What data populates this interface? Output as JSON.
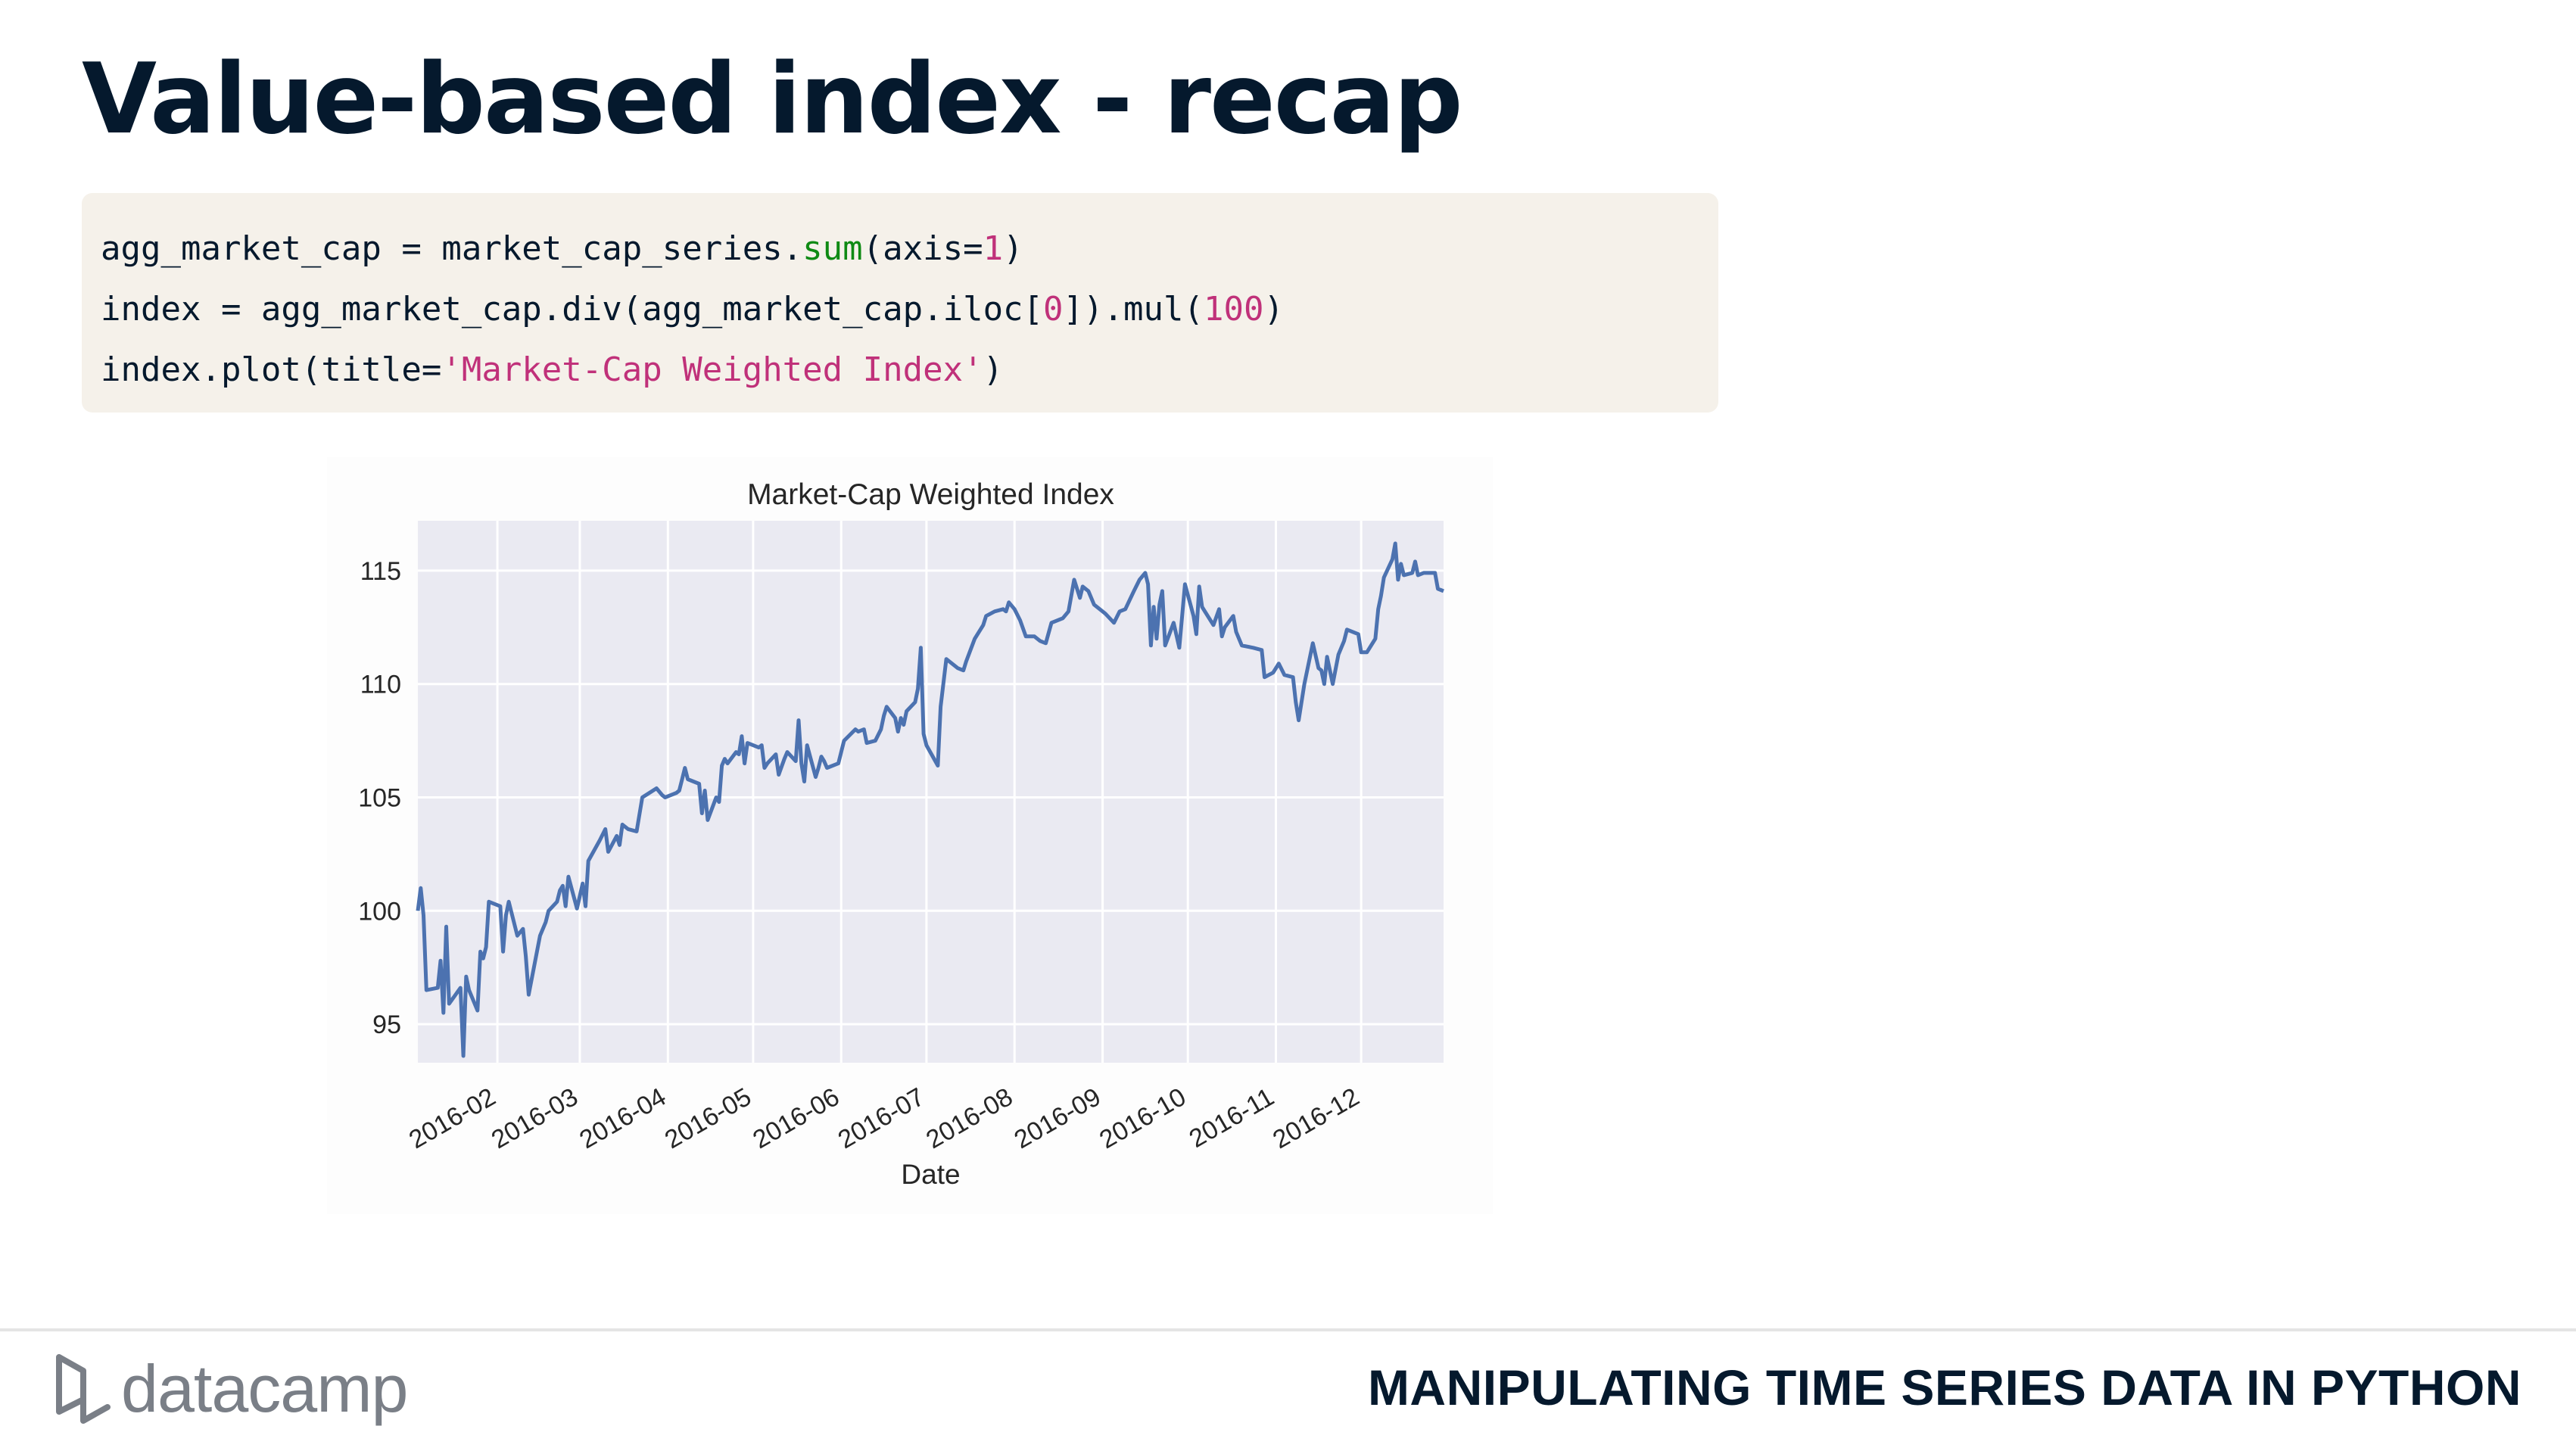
{
  "slide": {
    "title": "Value-based index - recap",
    "course": "MANIPULATING TIME SERIES DATA IN PYTHON",
    "brand": "datacamp"
  },
  "code": {
    "line1_a": "agg_market_cap = market_cap_series.",
    "line1_fn": "sum",
    "line1_b": "(axis=",
    "line1_num": "1",
    "line1_c": ")",
    "line2_a": "index = agg_market_cap.div(agg_market_cap.iloc[",
    "line2_num0": "0",
    "line2_b": "]).mul(",
    "line2_num100": "100",
    "line2_c": ")",
    "line3_a": "index.plot(title=",
    "line3_str": "'Market-Cap Weighted Index'",
    "line3_b": ")"
  },
  "chart_data": {
    "type": "line",
    "title": "Market-Cap Weighted Index",
    "xlabel": "Date",
    "ylabel": "",
    "x_range": [
      "2016-01-04",
      "2016-12-30"
    ],
    "ylim": [
      93.3,
      117.2
    ],
    "y_ticks": [
      95,
      100,
      105,
      110,
      115
    ],
    "x_ticks": [
      "2016-02-01",
      "2016-03-01",
      "2016-04-01",
      "2016-05-01",
      "2016-06-01",
      "2016-07-01",
      "2016-08-01",
      "2016-09-01",
      "2016-10-01",
      "2016-11-01",
      "2016-12-01"
    ],
    "x_tick_labels": [
      "2016-02",
      "2016-03",
      "2016-04",
      "2016-05",
      "2016-06",
      "2016-07",
      "2016-08",
      "2016-09",
      "2016-10",
      "2016-11",
      "2016-12"
    ],
    "grid": true,
    "line_color": "#4c72b0",
    "background_color": "#eaeaf2",
    "series": [
      {
        "points": [
          [
            "2016-01-04",
            100.0
          ],
          [
            "2016-01-05",
            101.0
          ],
          [
            "2016-01-06",
            99.8
          ],
          [
            "2016-01-07",
            96.5
          ],
          [
            "2016-01-11",
            96.6
          ],
          [
            "2016-01-12",
            97.8
          ],
          [
            "2016-01-13",
            95.5
          ],
          [
            "2016-01-14",
            99.3
          ],
          [
            "2016-01-15",
            95.9
          ],
          [
            "2016-01-19",
            96.6
          ],
          [
            "2016-01-20",
            93.6
          ],
          [
            "2016-01-21",
            97.1
          ],
          [
            "2016-01-22",
            96.5
          ],
          [
            "2016-01-25",
            95.6
          ],
          [
            "2016-01-26",
            98.2
          ],
          [
            "2016-01-27",
            97.9
          ],
          [
            "2016-01-28",
            98.4
          ],
          [
            "2016-01-29",
            100.4
          ],
          [
            "2016-02-02",
            100.2
          ],
          [
            "2016-02-03",
            98.2
          ],
          [
            "2016-02-04",
            99.8
          ],
          [
            "2016-02-05",
            100.4
          ],
          [
            "2016-02-08",
            98.9
          ],
          [
            "2016-02-10",
            99.2
          ],
          [
            "2016-02-11",
            98.0
          ],
          [
            "2016-02-12",
            96.3
          ],
          [
            "2016-02-16",
            98.9
          ],
          [
            "2016-02-18",
            99.5
          ],
          [
            "2016-02-19",
            100.0
          ],
          [
            "2016-02-22",
            100.4
          ],
          [
            "2016-02-23",
            100.9
          ],
          [
            "2016-02-24",
            101.1
          ],
          [
            "2016-02-25",
            100.2
          ],
          [
            "2016-02-26",
            101.5
          ],
          [
            "2016-02-29",
            100.1
          ],
          [
            "2016-03-02",
            101.2
          ],
          [
            "2016-03-03",
            100.2
          ],
          [
            "2016-03-04",
            102.2
          ],
          [
            "2016-03-08",
            103.1
          ],
          [
            "2016-03-10",
            103.6
          ],
          [
            "2016-03-11",
            102.6
          ],
          [
            "2016-03-14",
            103.3
          ],
          [
            "2016-03-15",
            102.9
          ],
          [
            "2016-03-16",
            103.8
          ],
          [
            "2016-03-18",
            103.6
          ],
          [
            "2016-03-21",
            103.5
          ],
          [
            "2016-03-23",
            105.0
          ],
          [
            "2016-03-28",
            105.4
          ],
          [
            "2016-03-30",
            105.1
          ],
          [
            "2016-03-31",
            105.0
          ],
          [
            "2016-04-04",
            105.2
          ],
          [
            "2016-04-05",
            105.3
          ],
          [
            "2016-04-06",
            105.8
          ],
          [
            "2016-04-07",
            106.3
          ],
          [
            "2016-04-08",
            105.8
          ],
          [
            "2016-04-12",
            105.6
          ],
          [
            "2016-04-13",
            104.3
          ],
          [
            "2016-04-14",
            105.3
          ],
          [
            "2016-04-15",
            104.0
          ],
          [
            "2016-04-18",
            105.0
          ],
          [
            "2016-04-19",
            104.8
          ],
          [
            "2016-04-20",
            106.4
          ],
          [
            "2016-04-21",
            106.7
          ],
          [
            "2016-04-22",
            106.5
          ],
          [
            "2016-04-25",
            107.0
          ],
          [
            "2016-04-26",
            106.9
          ],
          [
            "2016-04-27",
            107.7
          ],
          [
            "2016-04-28",
            106.5
          ],
          [
            "2016-04-29",
            107.4
          ],
          [
            "2016-05-03",
            107.2
          ],
          [
            "2016-05-04",
            107.3
          ],
          [
            "2016-05-05",
            106.3
          ],
          [
            "2016-05-06",
            106.5
          ],
          [
            "2016-05-09",
            106.9
          ],
          [
            "2016-05-10",
            106.0
          ],
          [
            "2016-05-12",
            106.7
          ],
          [
            "2016-05-13",
            107.0
          ],
          [
            "2016-05-16",
            106.6
          ],
          [
            "2016-05-17",
            108.4
          ],
          [
            "2016-05-18",
            106.5
          ],
          [
            "2016-05-19",
            105.7
          ],
          [
            "2016-05-20",
            107.3
          ],
          [
            "2016-05-23",
            105.9
          ],
          [
            "2016-05-24",
            106.3
          ],
          [
            "2016-05-25",
            106.8
          ],
          [
            "2016-05-26",
            106.6
          ],
          [
            "2016-05-27",
            106.3
          ],
          [
            "2016-05-31",
            106.5
          ],
          [
            "2016-06-02",
            107.5
          ],
          [
            "2016-06-06",
            108.0
          ],
          [
            "2016-06-07",
            107.9
          ],
          [
            "2016-06-09",
            108.0
          ],
          [
            "2016-06-10",
            107.4
          ],
          [
            "2016-06-13",
            107.5
          ],
          [
            "2016-06-15",
            108.0
          ],
          [
            "2016-06-16",
            108.6
          ],
          [
            "2016-06-17",
            109.0
          ],
          [
            "2016-06-20",
            108.5
          ],
          [
            "2016-06-21",
            107.9
          ],
          [
            "2016-06-22",
            108.5
          ],
          [
            "2016-06-23",
            108.2
          ],
          [
            "2016-06-24",
            108.8
          ],
          [
            "2016-06-27",
            109.2
          ],
          [
            "2016-06-28",
            109.8
          ],
          [
            "2016-06-29",
            111.6
          ],
          [
            "2016-06-30",
            107.8
          ],
          [
            "2016-07-01",
            107.3
          ],
          [
            "2016-07-05",
            106.4
          ],
          [
            "2016-07-06",
            109.0
          ],
          [
            "2016-07-08",
            111.1
          ],
          [
            "2016-07-12",
            110.7
          ],
          [
            "2016-07-14",
            110.6
          ],
          [
            "2016-07-15",
            111.0
          ],
          [
            "2016-07-18",
            112.0
          ],
          [
            "2016-07-21",
            112.6
          ],
          [
            "2016-07-22",
            113.0
          ],
          [
            "2016-07-25",
            113.2
          ],
          [
            "2016-07-28",
            113.3
          ],
          [
            "2016-07-29",
            113.2
          ],
          [
            "2016-07-30",
            113.6
          ],
          [
            "2016-08-01",
            113.3
          ],
          [
            "2016-08-03",
            112.8
          ],
          [
            "2016-08-05",
            112.1
          ],
          [
            "2016-08-08",
            112.1
          ],
          [
            "2016-08-10",
            111.9
          ],
          [
            "2016-08-12",
            111.8
          ],
          [
            "2016-08-14",
            112.7
          ],
          [
            "2016-08-16",
            112.8
          ],
          [
            "2016-08-18",
            112.9
          ],
          [
            "2016-08-20",
            113.2
          ],
          [
            "2016-08-22",
            114.6
          ],
          [
            "2016-08-24",
            113.8
          ],
          [
            "2016-08-25",
            114.3
          ],
          [
            "2016-08-27",
            114.1
          ],
          [
            "2016-08-29",
            113.5
          ],
          [
            "2016-09-01",
            113.2
          ],
          [
            "2016-09-02",
            113.1
          ],
          [
            "2016-09-05",
            112.7
          ],
          [
            "2016-09-07",
            113.2
          ],
          [
            "2016-09-09",
            113.3
          ],
          [
            "2016-09-12",
            114.1
          ],
          [
            "2016-09-14",
            114.6
          ],
          [
            "2016-09-16",
            114.9
          ],
          [
            "2016-09-17",
            114.4
          ],
          [
            "2016-09-18",
            111.7
          ],
          [
            "2016-09-19",
            113.4
          ],
          [
            "2016-09-20",
            112.0
          ],
          [
            "2016-09-21",
            113.5
          ],
          [
            "2016-09-22",
            114.1
          ],
          [
            "2016-09-23",
            111.7
          ],
          [
            "2016-09-26",
            112.7
          ],
          [
            "2016-09-28",
            111.6
          ],
          [
            "2016-09-30",
            114.4
          ],
          [
            "2016-10-03",
            113.0
          ],
          [
            "2016-10-04",
            112.2
          ],
          [
            "2016-10-05",
            114.3
          ],
          [
            "2016-10-06",
            113.4
          ],
          [
            "2016-10-07",
            113.2
          ],
          [
            "2016-10-10",
            112.6
          ],
          [
            "2016-10-12",
            113.3
          ],
          [
            "2016-10-13",
            112.1
          ],
          [
            "2016-10-14",
            112.5
          ],
          [
            "2016-10-17",
            113.0
          ],
          [
            "2016-10-18",
            112.3
          ],
          [
            "2016-10-20",
            111.7
          ],
          [
            "2016-10-24",
            111.6
          ],
          [
            "2016-10-27",
            111.5
          ],
          [
            "2016-10-28",
            110.3
          ],
          [
            "2016-10-31",
            110.5
          ],
          [
            "2016-11-02",
            110.9
          ],
          [
            "2016-11-04",
            110.4
          ],
          [
            "2016-11-07",
            110.3
          ],
          [
            "2016-11-08",
            109.2
          ],
          [
            "2016-11-09",
            108.4
          ],
          [
            "2016-11-11",
            110.0
          ],
          [
            "2016-11-14",
            111.8
          ],
          [
            "2016-11-16",
            110.7
          ],
          [
            "2016-11-17",
            110.6
          ],
          [
            "2016-11-18",
            110.0
          ],
          [
            "2016-11-19",
            111.2
          ],
          [
            "2016-11-21",
            110.0
          ],
          [
            "2016-11-23",
            111.3
          ],
          [
            "2016-11-25",
            111.9
          ],
          [
            "2016-11-26",
            112.4
          ],
          [
            "2016-11-28",
            112.3
          ],
          [
            "2016-11-30",
            112.2
          ],
          [
            "2016-12-01",
            111.4
          ],
          [
            "2016-12-03",
            111.4
          ],
          [
            "2016-12-06",
            112.0
          ],
          [
            "2016-12-07",
            113.3
          ],
          [
            "2016-12-08",
            113.9
          ],
          [
            "2016-12-09",
            114.7
          ],
          [
            "2016-12-12",
            115.5
          ],
          [
            "2016-12-13",
            116.2
          ],
          [
            "2016-12-14",
            114.6
          ],
          [
            "2016-12-15",
            115.3
          ],
          [
            "2016-12-16",
            114.8
          ],
          [
            "2016-12-19",
            114.9
          ],
          [
            "2016-12-20",
            115.4
          ],
          [
            "2016-12-21",
            114.8
          ],
          [
            "2016-12-23",
            114.9
          ],
          [
            "2016-12-27",
            114.9
          ],
          [
            "2016-12-28",
            114.2
          ],
          [
            "2016-12-30",
            114.1
          ]
        ]
      }
    ]
  }
}
